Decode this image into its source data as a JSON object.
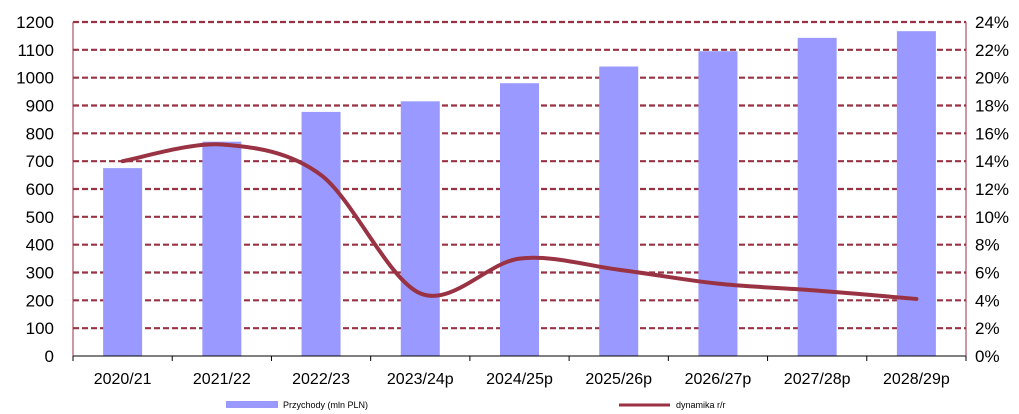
{
  "chart_data": {
    "type": "bar",
    "categories": [
      "2020/21",
      "2021/22",
      "2022/23",
      "2023/24p",
      "2024/25p",
      "2025/26p",
      "2026/27p",
      "2027/28p",
      "2028/29p"
    ],
    "series": [
      {
        "name": "Przychody (mln PLN)",
        "type": "bar",
        "axis": "left",
        "color": "#9999ff",
        "values": [
          675,
          770,
          877,
          915,
          980,
          1040,
          1095,
          1143,
          1167
        ]
      },
      {
        "name": "dynamika r/r",
        "type": "line",
        "axis": "right",
        "color": "#993344",
        "values": [
          14.0,
          15.2,
          13.0,
          4.5,
          7.0,
          6.2,
          5.2,
          4.7,
          4.1
        ]
      }
    ],
    "y_left": {
      "min": 0,
      "max": 1200,
      "step": 100,
      "ticks": [
        "0",
        "100",
        "200",
        "300",
        "400",
        "500",
        "600",
        "700",
        "800",
        "900",
        "1000",
        "1100",
        "1200"
      ]
    },
    "y_right": {
      "min": 0,
      "max": 24,
      "step": 2,
      "ticks": [
        "0%",
        "2%",
        "4%",
        "6%",
        "8%",
        "10%",
        "12%",
        "14%",
        "16%",
        "18%",
        "20%",
        "22%",
        "24%"
      ]
    },
    "grid": true,
    "grid_color": "#993344",
    "legend_position": "bottom"
  }
}
